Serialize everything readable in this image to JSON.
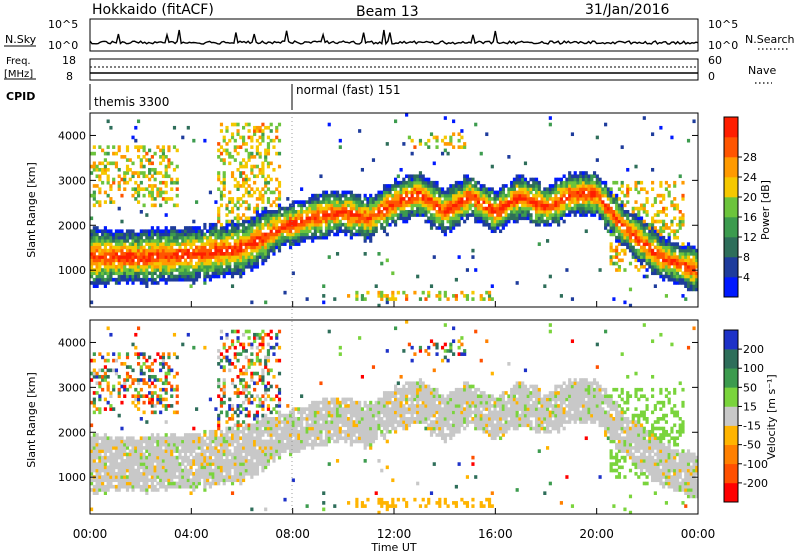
{
  "header": {
    "station": "Hokkaido (fitACF)",
    "beam": "Beam 13",
    "date": "31/Jan/2016"
  },
  "top_panels": {
    "nsky_label": "N.Sky",
    "nsky_ticks": [
      "10^5",
      "10^0"
    ],
    "nsearch_label": "N.Search",
    "nsearch_ticks": [
      "10^5",
      "10^0"
    ],
    "freq_label": "Freq.",
    "freq_unit": "[MHz]",
    "freq_ticks": [
      "18",
      "8"
    ],
    "nave_label": "Nave",
    "nave_ticks": [
      "60",
      "0"
    ],
    "cpid_label": "CPID",
    "cpid_modes": [
      {
        "text": "themis 3300",
        "start": "00:00"
      },
      {
        "text": "normal (fast) 151",
        "start": "08:00"
      }
    ]
  },
  "chart_data": [
    {
      "type": "heatmap",
      "name": "power",
      "ylabel": "Slant Range [km]",
      "xlabel": "",
      "xlim": [
        "00:00",
        "24:00"
      ],
      "ylim": [
        180,
        4500
      ],
      "yticks": [
        "1000",
        "2000",
        "3000",
        "4000"
      ],
      "colorbar": {
        "label": "Power [dB]",
        "range": [
          0,
          32
        ],
        "ticks": [
          "4",
          "8",
          "12",
          "16",
          "20",
          "24",
          "28"
        ],
        "colors": [
          "#0019ff",
          "#1e3c9c",
          "#2e6e5a",
          "#3c9b4e",
          "#6cc43c",
          "#f5c800",
          "#ff9a00",
          "#ff5500",
          "#ff1e00"
        ]
      },
      "echo_band": {
        "description_values": [
          {
            "hour": 0.0,
            "range_km": 1300
          },
          {
            "hour": 2.0,
            "range_km": 1300
          },
          {
            "hour": 4.0,
            "range_km": 1350
          },
          {
            "hour": 6.0,
            "range_km": 1500
          },
          {
            "hour": 7.5,
            "range_km": 1950
          },
          {
            "hour": 9.0,
            "range_km": 2200
          },
          {
            "hour": 10.0,
            "range_km": 2300
          },
          {
            "hour": 11.0,
            "range_km": 2150
          },
          {
            "hour": 12.0,
            "range_km": 2500
          },
          {
            "hour": 13.0,
            "range_km": 2700
          },
          {
            "hour": 14.0,
            "range_km": 2300
          },
          {
            "hour": 15.0,
            "range_km": 2650
          },
          {
            "hour": 16.0,
            "range_km": 2300
          },
          {
            "hour": 17.0,
            "range_km": 2650
          },
          {
            "hour": 18.0,
            "range_km": 2400
          },
          {
            "hour": 19.0,
            "range_km": 2700
          },
          {
            "hour": 20.0,
            "range_km": 2700
          },
          {
            "hour": 21.0,
            "range_km": 2000
          },
          {
            "hour": 22.5,
            "range_km": 1300
          },
          {
            "hour": 24.0,
            "range_km": 1000
          }
        ]
      }
    },
    {
      "type": "heatmap",
      "name": "velocity",
      "ylabel": "Slant Range [km]",
      "xlabel": "Time UT",
      "xlim": [
        "00:00",
        "24:00"
      ],
      "xticks": [
        "00:00",
        "04:00",
        "08:00",
        "12:00",
        "16:00",
        "20:00",
        "00:00"
      ],
      "ylim": [
        180,
        4500
      ],
      "yticks": [
        "1000",
        "2000",
        "3000",
        "4000"
      ],
      "colorbar": {
        "label": "Velocity [m s⁻¹]",
        "range": [
          -250,
          250
        ],
        "ticks": [
          "200",
          "100",
          "50",
          "15",
          "-15",
          "-50",
          "-100",
          "-200"
        ],
        "colors": [
          "#1e32c8",
          "#2e6e5a",
          "#3c9b4e",
          "#7ad43c",
          "#c8c8c8",
          "#ffb400",
          "#ff8000",
          "#ff5000",
          "#ff0000"
        ]
      }
    }
  ]
}
